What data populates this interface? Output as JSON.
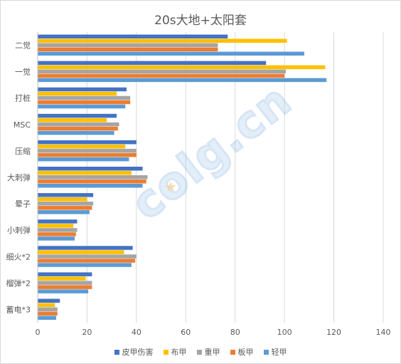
{
  "chart_data": {
    "type": "bar",
    "orientation": "horizontal",
    "title": "20s大地+太阳套",
    "categories": [
      "二觉",
      "一觉",
      "打桩",
      "MSC",
      "压缩",
      "大刺弹",
      "晕子",
      "小刺弹",
      "细火*2",
      "榴弹*2",
      "蓄电*3"
    ],
    "series": [
      {
        "name": "皮甲伤害",
        "color": "#4472c4",
        "values": [
          77,
          92.5,
          36,
          32,
          40,
          42.5,
          22.5,
          16,
          38.5,
          22,
          9
        ]
      },
      {
        "name": "布甲",
        "color": "#ffc000",
        "values": [
          101,
          116.5,
          32,
          28,
          35.5,
          38,
          20,
          14.5,
          35,
          19.5,
          7
        ]
      },
      {
        "name": "重甲",
        "color": "#a5a5a5",
        "values": [
          73,
          100.5,
          37.5,
          33,
          40,
          44.5,
          22.5,
          16,
          40,
          22,
          8
        ]
      },
      {
        "name": "板甲",
        "color": "#ed7d31",
        "values": [
          73,
          100,
          37.5,
          32.5,
          40,
          44,
          22,
          15.5,
          39.5,
          22,
          8
        ]
      },
      {
        "name": "轻甲",
        "color": "#5b9bd5",
        "values": [
          108,
          117,
          35.5,
          31,
          37,
          42.5,
          21,
          15,
          38,
          20.5,
          7.5
        ]
      }
    ],
    "xlim": [
      0,
      140
    ],
    "xticks": [
      0,
      20,
      40,
      60,
      80,
      100,
      120,
      140
    ],
    "grid": "vertical",
    "legend_position": "bottom"
  },
  "watermark_text": "colg.cn"
}
